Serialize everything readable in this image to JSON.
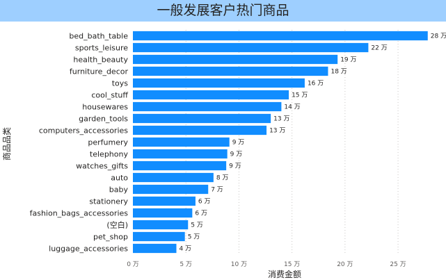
{
  "chart_data": {
    "type": "bar",
    "orientation": "horizontal",
    "title": "一般发展客户热门商品",
    "xlabel": "消费金额",
    "ylabel": "商品品类",
    "xlim": [
      0,
      28.8
    ],
    "x_ticks": [
      0,
      5,
      10,
      15,
      20,
      25
    ],
    "tick_suffix": " 万",
    "label_suffix": " 万",
    "grid": "vertical-dotted",
    "bar_color": "#118dff",
    "categories": [
      "bed_bath_table",
      "sports_leisure",
      "health_beauty",
      "furniture_decor",
      "toys",
      "cool_stuff",
      "housewares",
      "garden_tools",
      "computers_accessories",
      "perfumery",
      "telephony",
      "watches_gifts",
      "auto",
      "baby",
      "stationery",
      "fashion_bags_accessories",
      "(空白)",
      "pet_shop",
      "luggage_accessories"
    ],
    "values": [
      27.8,
      22.2,
      19.3,
      18.4,
      16.2,
      14.7,
      14.0,
      13.0,
      12.6,
      9.1,
      8.9,
      8.8,
      7.6,
      7.1,
      5.9,
      5.6,
      5.2,
      4.9,
      4.1
    ],
    "data_labels": [
      "28 万",
      "22 万",
      "19 万",
      "18 万",
      "16 万",
      "15 万",
      "14 万",
      "13 万",
      "13 万",
      "9 万",
      "9 万",
      "9 万",
      "8 万",
      "7 万",
      "6 万",
      "6 万",
      "5 万",
      "5 万",
      "4 万"
    ]
  }
}
